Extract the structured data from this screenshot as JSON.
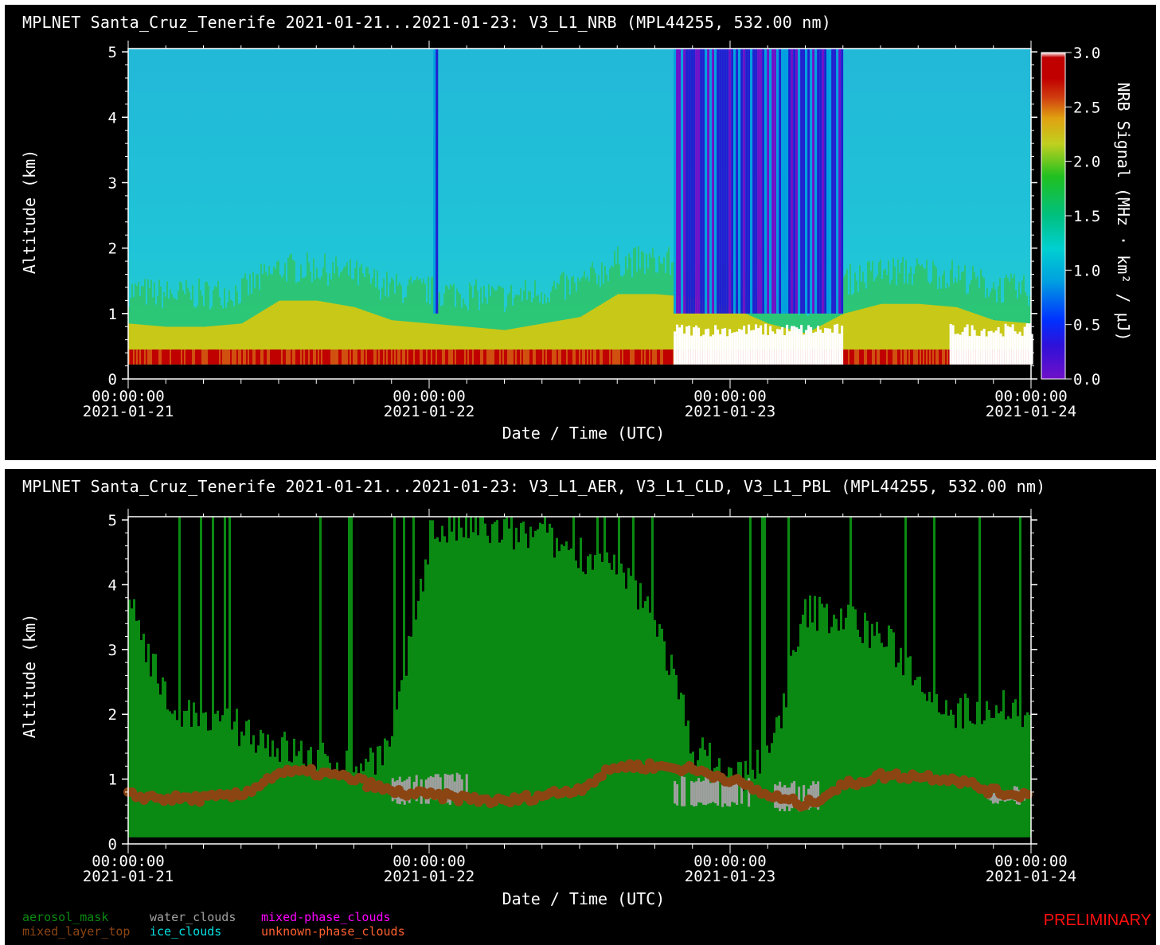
{
  "colors": {
    "background": "#000000",
    "foreground": "#ffffff",
    "aerosol": "#0a8a12",
    "pbl": "#8b4513",
    "water": "#a0a0a0",
    "ice": "#00e0e0",
    "mixed": "#ff00ff",
    "unknown": "#ff6030",
    "preliminary": "#ff1010"
  },
  "chart_data": [
    {
      "type": "heatmap",
      "title": "MPLNET Santa_Cruz_Tenerife 2021-01-21...2021-01-23:  V3_L1_NRB  (MPL44255, 532.00 nm)",
      "xlabel": "Date / Time (UTC)",
      "ylabel": "Altitude (km)",
      "x_ticks": [
        {
          "time": "00:00:00",
          "date": "2021-01-21"
        },
        {
          "time": "00:00:00",
          "date": "2021-01-22"
        },
        {
          "time": "00:00:00",
          "date": "2021-01-23"
        },
        {
          "time": "00:00:00",
          "date": "2021-01-24"
        }
      ],
      "xlim": [
        "2021-01-21 00:00",
        "2021-01-24 00:00"
      ],
      "y_ticks": [
        "0",
        "1",
        "2",
        "3",
        "4",
        "5"
      ],
      "ylim": [
        0,
        5.05
      ],
      "colorbar": {
        "label": "NRB Signal (MHz · km² / μJ)",
        "range": [
          0.0,
          3.0
        ],
        "ticks": [
          "0.0",
          "0.5",
          "1.0",
          "1.5",
          "2.0",
          "2.5",
          "3.0"
        ],
        "colormap": "rainbow"
      },
      "structure": {
        "background_signal_above_pbl": 0.8,
        "near_surface_signal": 3.0,
        "no_data_below_km": 0.22,
        "low_signal_periods_utc": [
          [
            "2021-01-22 00:20",
            "2021-01-22 00:40"
          ],
          [
            "2021-01-22 19:30",
            "2021-01-23 09:00"
          ]
        ],
        "white_saturated_periods_utc": [
          [
            "2021-01-22 19:30",
            "2021-01-23 09:00"
          ],
          [
            "2021-01-23 17:30",
            "2021-01-24 00:00"
          ]
        ]
      }
    },
    {
      "type": "heatmap",
      "title": "MPLNET Santa_Cruz_Tenerife 2021-01-21...2021-01-23:  V3_L1_AER, V3_L1_CLD, V3_L1_PBL  (MPL44255, 532.00 nm)",
      "xlabel": "Date / Time (UTC)",
      "ylabel": "Altitude (km)",
      "x_ticks": [
        {
          "time": "00:00:00",
          "date": "2021-01-21"
        },
        {
          "time": "00:00:00",
          "date": "2021-01-22"
        },
        {
          "time": "00:00:00",
          "date": "2021-01-23"
        },
        {
          "time": "00:00:00",
          "date": "2021-01-24"
        }
      ],
      "xlim": [
        "2021-01-21 00:00",
        "2021-01-24 00:00"
      ],
      "y_ticks": [
        "0",
        "1",
        "2",
        "3",
        "4",
        "5"
      ],
      "ylim": [
        0,
        5.05
      ],
      "legend": [
        {
          "label": "aerosol_mask",
          "color": "#0a8a12"
        },
        {
          "label": "water_clouds",
          "color": "#a0a0a0"
        },
        {
          "label": "mixed-phase_clouds",
          "color": "#ff00ff"
        },
        {
          "label": "mixed_layer_top",
          "color": "#8b4513"
        },
        {
          "label": "ice_clouds",
          "color": "#00e0e0"
        },
        {
          "label": "unknown-phase_clouds",
          "color": "#ff6030"
        }
      ],
      "aerosol_top_km": [
        [
          "2021-01-21 00:00",
          3.8
        ],
        [
          "2021-01-21 03:00",
          2.2
        ],
        [
          "2021-01-21 06:00",
          1.8
        ],
        [
          "2021-01-21 09:00",
          1.8
        ],
        [
          "2021-01-21 12:00",
          1.5
        ],
        [
          "2021-01-21 15:00",
          1.3
        ],
        [
          "2021-01-21 18:00",
          1.2
        ],
        [
          "2021-01-21 21:00",
          1.5
        ],
        [
          "2021-01-22 00:00",
          4.8
        ],
        [
          "2021-01-22 03:00",
          4.9
        ],
        [
          "2021-01-22 06:00",
          4.8
        ],
        [
          "2021-01-22 09:00",
          4.7
        ],
        [
          "2021-01-22 12:00",
          4.5
        ],
        [
          "2021-01-22 15:00",
          4.2
        ],
        [
          "2021-01-22 18:00",
          3.5
        ],
        [
          "2021-01-22 21:00",
          1.5
        ],
        [
          "2021-01-23 00:00",
          1.0
        ],
        [
          "2021-01-23 03:00",
          1.3
        ],
        [
          "2021-01-23 06:00",
          3.6
        ],
        [
          "2021-01-23 09:00",
          3.5
        ],
        [
          "2021-01-23 12:00",
          3.2
        ],
        [
          "2021-01-23 15:00",
          2.6
        ],
        [
          "2021-01-23 18:00",
          2.0
        ],
        [
          "2021-01-23 21:00",
          2.2
        ],
        [
          "2021-01-24 00:00",
          2.0
        ]
      ],
      "mixed_layer_top_km": [
        [
          "2021-01-21 00:00",
          0.75
        ],
        [
          "2021-01-21 03:00",
          0.7
        ],
        [
          "2021-01-21 06:00",
          0.7
        ],
        [
          "2021-01-21 09:00",
          0.75
        ],
        [
          "2021-01-21 12:00",
          1.1
        ],
        [
          "2021-01-21 15:00",
          1.1
        ],
        [
          "2021-01-21 18:00",
          1.0
        ],
        [
          "2021-01-21 21:00",
          0.8
        ],
        [
          "2021-01-22 00:00",
          0.75
        ],
        [
          "2021-01-22 03:00",
          0.7
        ],
        [
          "2021-01-22 06:00",
          0.65
        ],
        [
          "2021-01-22 09:00",
          0.75
        ],
        [
          "2021-01-22 12:00",
          0.85
        ],
        [
          "2021-01-22 15:00",
          1.2
        ],
        [
          "2021-01-22 18:00",
          1.2
        ],
        [
          "2021-01-22 21:00",
          1.15
        ],
        [
          "2021-01-23 00:00",
          1.0
        ],
        [
          "2021-01-23 03:00",
          0.75
        ],
        [
          "2021-01-23 06:00",
          0.6
        ],
        [
          "2021-01-23 09:00",
          0.9
        ],
        [
          "2021-01-23 12:00",
          1.05
        ],
        [
          "2021-01-23 15:00",
          1.05
        ],
        [
          "2021-01-23 18:00",
          1.0
        ],
        [
          "2021-01-23 21:00",
          0.8
        ],
        [
          "2021-01-24 00:00",
          0.75
        ]
      ],
      "water_cloud_periods_utc": [
        [
          "2021-01-21 21:00",
          "2021-01-22 03:00",
          0.6,
          1.1
        ],
        [
          "2021-01-22 19:30",
          "2021-01-23 01:30",
          0.55,
          1.05
        ],
        [
          "2021-01-23 03:30",
          "2021-01-23 07:00",
          0.5,
          1.0
        ],
        [
          "2021-01-23 20:30",
          "2021-01-23 23:30",
          0.6,
          0.9
        ]
      ]
    }
  ],
  "preliminary": "PRELIMINARY"
}
